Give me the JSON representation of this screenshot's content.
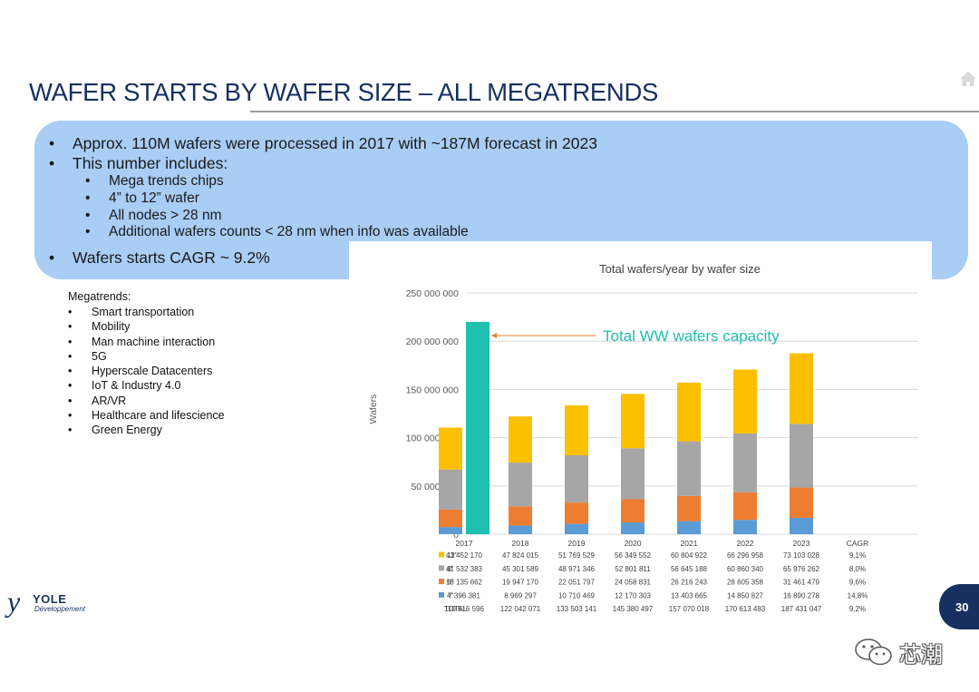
{
  "title": "WAFER STARTS BY WAFER SIZE – ALL MEGATRENDS",
  "bullets": [
    "Approx. 110M wafers were processed in 2017 with ~187M forecast in 2023",
    "This number includes:"
  ],
  "sub_bullets": [
    "Mega trends chips",
    "4” to 12” wafer",
    "All nodes > 28 nm",
    "Additional wafers counts < 28 nm when info was available"
  ],
  "last_bullet": "Wafers starts CAGR ~ 9.2%",
  "megatrends": {
    "heading": "Megatrends:",
    "items": [
      "Smart transportation",
      "Mobility",
      "Man machine interaction",
      "5G",
      "Hyperscale Datacenters",
      "IoT & Industry 4.0",
      "AR/VR",
      "Healthcare and lifescience",
      "Green Energy"
    ]
  },
  "logo": {
    "mark": "y",
    "word": "YOLE",
    "sub": "Développement"
  },
  "page_number": "30",
  "watermark": "芯潮",
  "colors": {
    "title": "#16305f",
    "bubble": "#a9cdf5",
    "w12": "#fcc000",
    "w8": "#a6a6a6",
    "w6": "#ed7d31",
    "w4": "#5b9bd5",
    "capacity": "#1fbfb0"
  },
  "chart_data": {
    "type": "bar",
    "stacked": true,
    "title": "Total wafers/year by wafer size",
    "ylabel": "Wafers",
    "ylim": [
      0,
      250000000
    ],
    "yticks": [
      0,
      50000000,
      100000000,
      150000000,
      200000000,
      250000000
    ],
    "ytick_labels": [
      "0",
      "50 000 000",
      "100 000 000",
      "150 000 000",
      "200 000 000",
      "250 000 000"
    ],
    "categories": [
      "2017",
      "2018",
      "2019",
      "2020",
      "2021",
      "2022",
      "2023"
    ],
    "series": [
      {
        "name": "4\"",
        "color": "#5b9bd5",
        "values": [
          7396381,
          8969297,
          10710469,
          12170303,
          13403665,
          14850827,
          16890278
        ],
        "labels": [
          "7 396 381",
          "8 969 297",
          "10 710 469",
          "12 170 303",
          "13 403 665",
          "14 850 827",
          "16 890 278"
        ],
        "cagr": "14,8%"
      },
      {
        "name": "6\"",
        "color": "#ed7d31",
        "values": [
          18135662,
          19947170,
          22051797,
          24058831,
          26216243,
          28605358,
          31461479
        ],
        "labels": [
          "18 135 662",
          "19 947 170",
          "22 051 797",
          "24 058 831",
          "26 216 243",
          "28 605 358",
          "31 461 479"
        ],
        "cagr": "9,6%"
      },
      {
        "name": "8\"",
        "color": "#a6a6a6",
        "values": [
          41532383,
          45301589,
          48971346,
          52801811,
          56645188,
          60860340,
          65976262
        ],
        "labels": [
          "41 532 383",
          "45 301 589",
          "48 971 346",
          "52 801 811",
          "56 645 188",
          "60 860 340",
          "65 976 262"
        ],
        "cagr": "8,0%"
      },
      {
        "name": "12\"",
        "color": "#fcc000",
        "values": [
          43452170,
          47824015,
          51769529,
          56349552,
          60804922,
          66296958,
          73103028
        ],
        "labels": [
          "43 452 170",
          "47 824 015",
          "51 769 529",
          "56 349 552",
          "60 804 922",
          "66 296 958",
          "73 103 028"
        ],
        "cagr": "9,1%"
      }
    ],
    "table_order": [
      "12\"",
      "8\"",
      "6\"",
      "4\""
    ],
    "cagr_header": "CAGR",
    "total": {
      "name": "TOTAL",
      "labels": [
        "110 516 596",
        "122 042 071",
        "133 503 141",
        "145 380 497",
        "157 070 018",
        "170 613 483",
        "187 431 047"
      ],
      "cagr": "9,2%"
    },
    "capacity": {
      "label": "Total WW wafers capacity",
      "value": 220000000,
      "category": "2017",
      "color": "#1fbfb0"
    }
  }
}
